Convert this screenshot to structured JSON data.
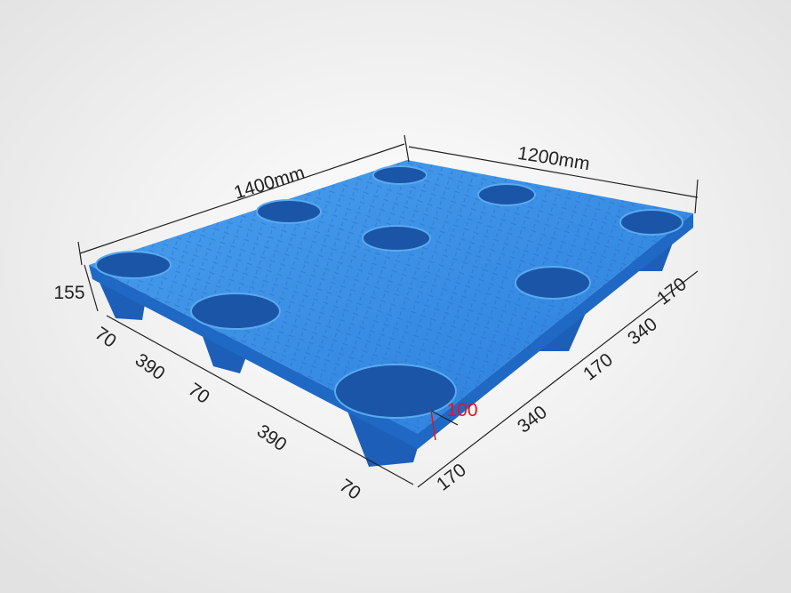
{
  "dimensions": {
    "length": "1400mm",
    "width": "1200mm",
    "height": "155",
    "left_side": [
      "70",
      "390",
      "70",
      "390",
      "70"
    ],
    "right_side": [
      "170",
      "340",
      "170",
      "340",
      "170"
    ],
    "leg_height": "100"
  },
  "colors": {
    "pallet": "#2f86e0",
    "pallet_dark": "#1d5fb8",
    "highlight": "#e5141b",
    "background": "#ececec"
  }
}
